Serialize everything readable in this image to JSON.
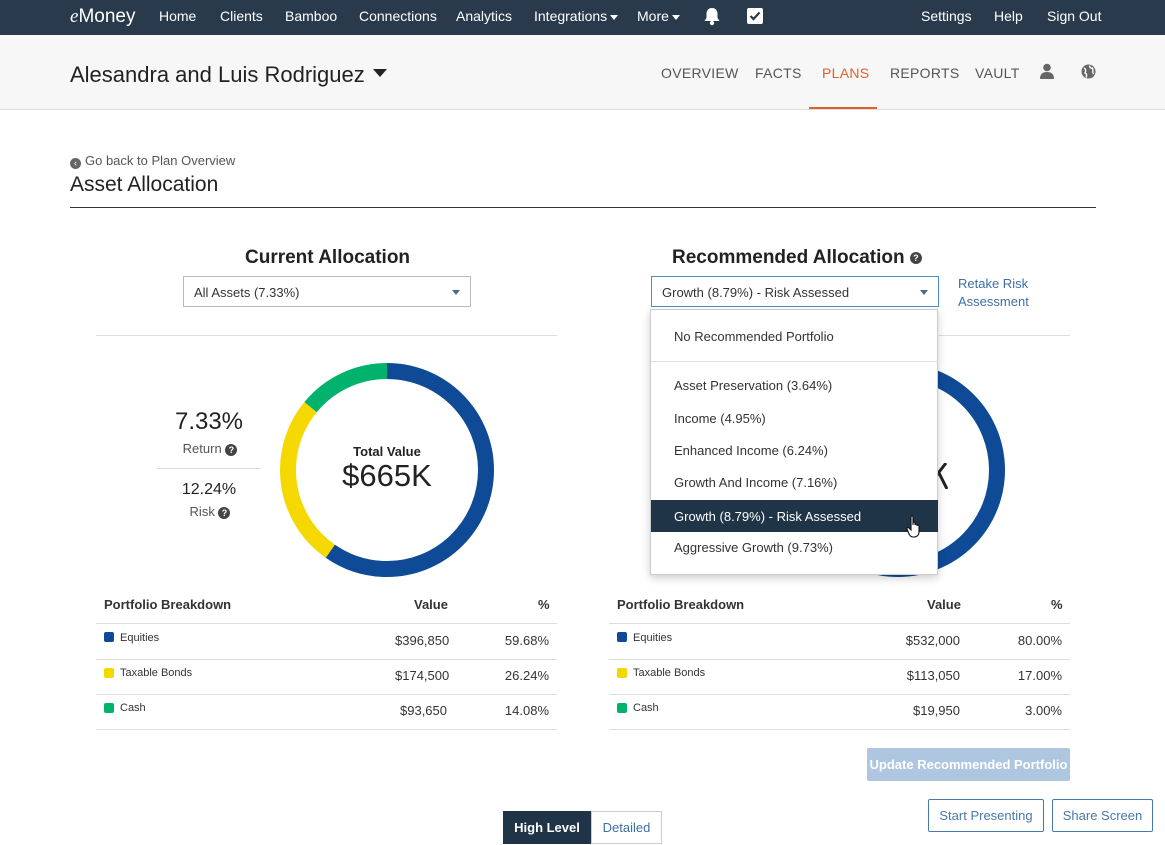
{
  "topnav": {
    "logo_prefix": "e",
    "logo_rest": "Money",
    "items": [
      "Home",
      "Clients",
      "Bamboo",
      "Connections",
      "Analytics",
      "Integrations",
      "More"
    ],
    "right_items": [
      "Settings",
      "Help",
      "Sign Out"
    ],
    "icons": [
      "bell-icon",
      "checkbox-icon"
    ]
  },
  "client": {
    "name": "Alesandra and Luis Rodriguez",
    "tabs": [
      "OVERVIEW",
      "FACTS",
      "PLANS",
      "REPORTS",
      "VAULT"
    ],
    "active_tab": "PLANS",
    "accent": "#e0602a"
  },
  "page": {
    "back_link": "Go back to Plan Overview",
    "title": "Asset Allocation"
  },
  "current": {
    "title": "Current Allocation",
    "select_value": "All Assets (7.33%)",
    "return_value": "7.33%",
    "return_label": "Return",
    "risk_value": "12.24%",
    "risk_label": "Risk",
    "total_label": "Total Value",
    "total_value": "$665K",
    "breakdown": {
      "headers": [
        "Portfolio Breakdown",
        "Value",
        "%"
      ],
      "rows": [
        {
          "name": "Equities",
          "value": "$396,850",
          "pct": "59.68%",
          "color": "#0e4a95"
        },
        {
          "name": "Taxable Bonds",
          "value": "$174,500",
          "pct": "26.24%",
          "color": "#f5d800"
        },
        {
          "name": "Cash",
          "value": "$93,650",
          "pct": "14.08%",
          "color": "#00b26b"
        }
      ]
    }
  },
  "recommended": {
    "title": "Recommended Allocation",
    "select_value": "Growth (8.79%) - Risk Assessed",
    "retake_line1": "Retake Risk",
    "retake_line2": "Assessment",
    "breakdown": {
      "headers": [
        "Portfolio Breakdown",
        "Value",
        "%"
      ],
      "rows": [
        {
          "name": "Equities",
          "value": "$532,000",
          "pct": "80.00%",
          "color": "#0e4a95"
        },
        {
          "name": "Taxable Bonds",
          "value": "$113,050",
          "pct": "17.00%",
          "color": "#f5d800"
        },
        {
          "name": "Cash",
          "value": "$19,950",
          "pct": "3.00%",
          "color": "#00b26b"
        }
      ]
    },
    "dropdown_options": [
      "No Recommended Portfolio",
      "Asset Preservation (3.64%)",
      "Income (4.95%)",
      "Enhanced Income (6.24%)",
      "Growth And Income (7.16%)",
      "Growth (8.79%) - Risk Assessed",
      "Aggressive Growth (9.73%)"
    ],
    "selected_option": "Growth (8.79%) - Risk Assessed"
  },
  "buttons": {
    "update": "Update Recommended Portfolio",
    "start_presenting": "Start Presenting",
    "share_screen": "Share Screen",
    "high_level": "High Level",
    "detailed": "Detailed"
  },
  "donut": {
    "current_pcts": [
      59.68,
      26.24,
      14.08
    ]
  }
}
